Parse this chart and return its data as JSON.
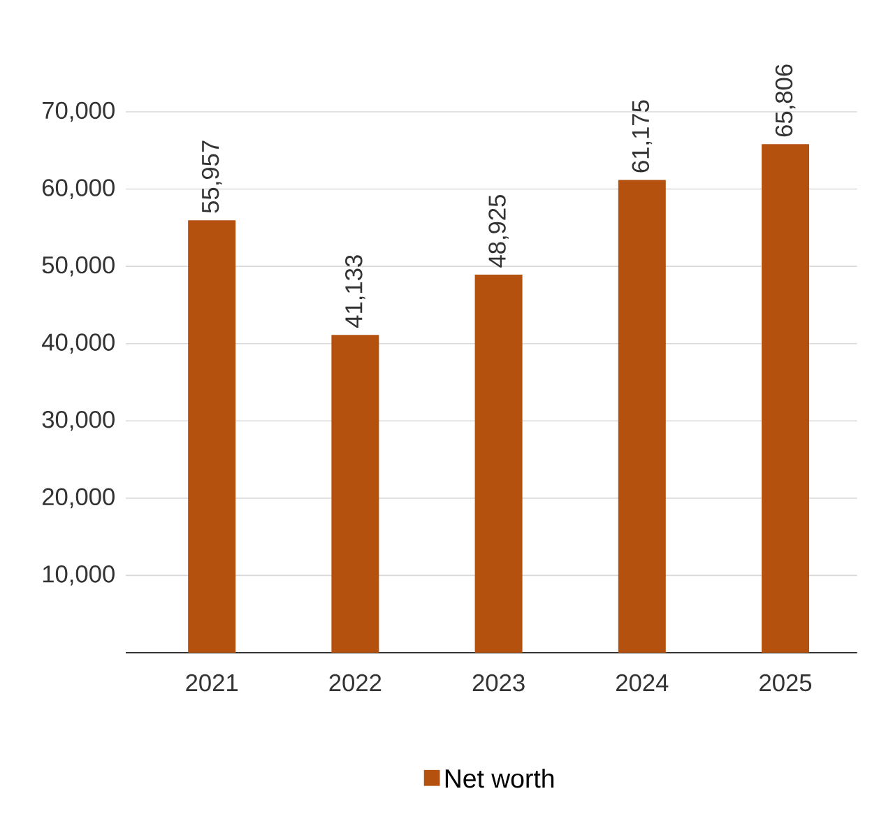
{
  "chart_data": {
    "type": "bar",
    "categories": [
      "2021",
      "2022",
      "2023",
      "2024",
      "2025"
    ],
    "series": [
      {
        "name": "Net worth",
        "color": "#b5510f",
        "values": [
          55957,
          41133,
          48925,
          61175,
          65806
        ],
        "value_labels": [
          "55,957",
          "41,133",
          "48,925",
          "61,175",
          "65,806"
        ]
      }
    ],
    "ylim": [
      0,
      70000
    ],
    "yticks": [
      {
        "value": 10000,
        "label": "10,000"
      },
      {
        "value": 20000,
        "label": "20,000"
      },
      {
        "value": 30000,
        "label": "30,000"
      },
      {
        "value": 40000,
        "label": "40,000"
      },
      {
        "value": 50000,
        "label": "50,000"
      },
      {
        "value": 60000,
        "label": "60,000"
      },
      {
        "value": 70000,
        "label": "70,000"
      }
    ],
    "grid": "y",
    "legend": "bottom"
  }
}
